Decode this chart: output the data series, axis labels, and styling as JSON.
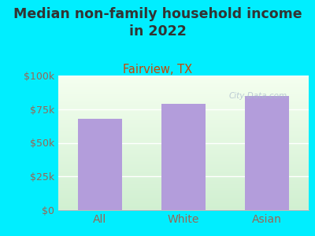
{
  "title": "Median non-family household income\nin 2022",
  "subtitle": "Fairview, TX",
  "categories": [
    "All",
    "White",
    "Asian"
  ],
  "values": [
    68000,
    79000,
    85000
  ],
  "bar_color": "#b39ddb",
  "background_outer": "#00eeff",
  "background_plot_top": "#d6f0d6",
  "background_plot_bottom": "#f5fdf0",
  "title_color": "#333333",
  "subtitle_color": "#cc4400",
  "tick_color": "#996655",
  "ylim": [
    0,
    100000
  ],
  "yticks": [
    0,
    25000,
    50000,
    75000,
    100000
  ],
  "ytick_labels": [
    "$0",
    "$25k",
    "$50k",
    "$75k",
    "$100k"
  ],
  "watermark": "City-Data.com",
  "title_fontsize": 12.5,
  "subtitle_fontsize": 10.5,
  "tick_fontsize": 9,
  "xlabel_fontsize": 10
}
